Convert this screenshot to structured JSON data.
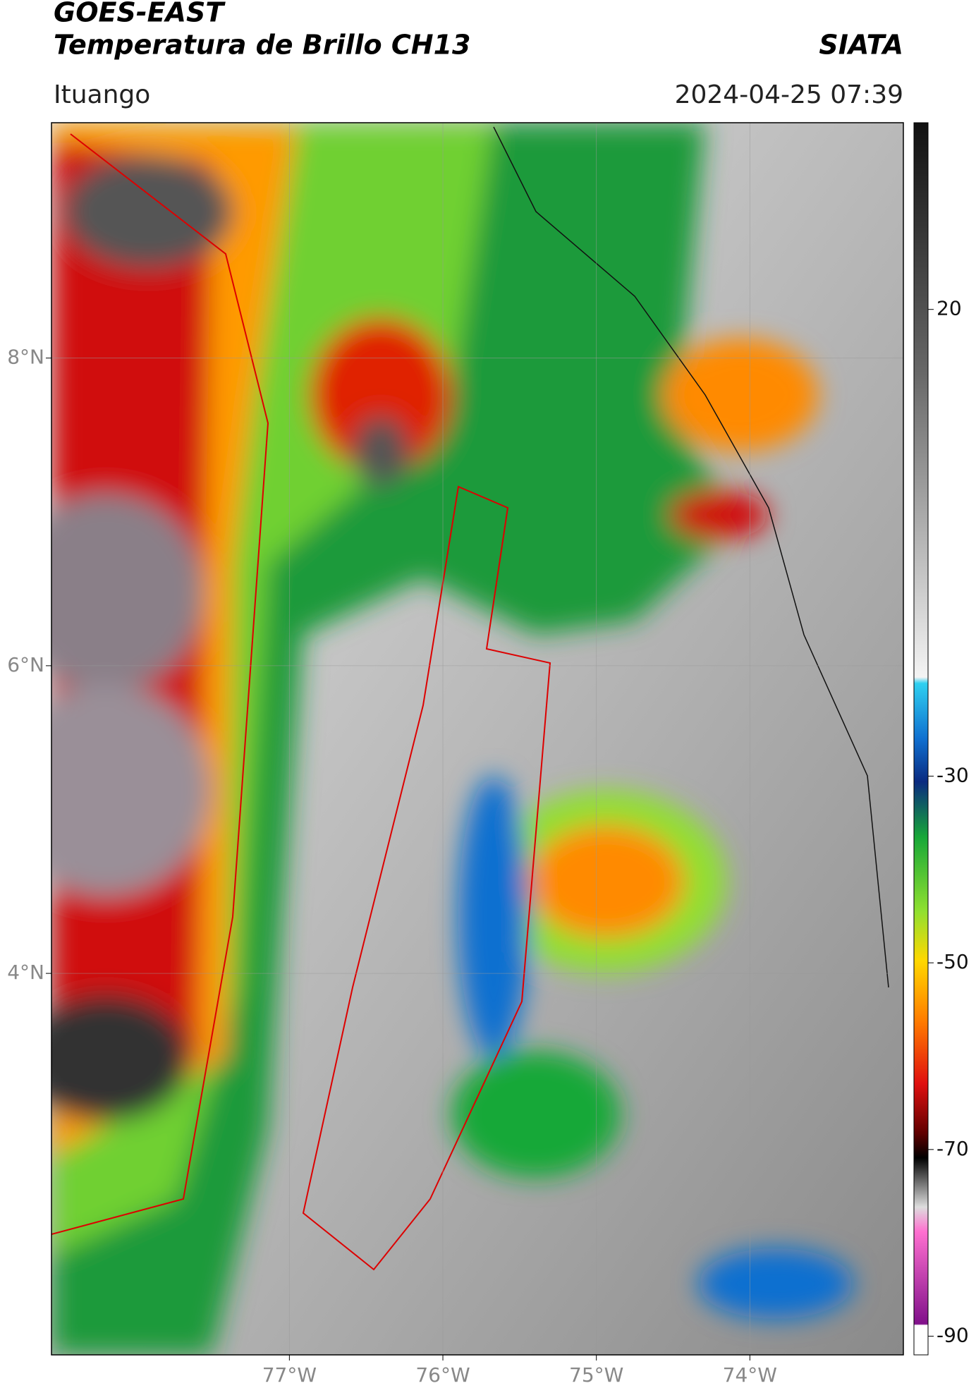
{
  "header": {
    "title_line1": "GOES-EAST",
    "title_line2": "Temperatura de Brillo CH13",
    "source": "SIATA",
    "location": "Ituango",
    "datetime": "2024-04-25 07:39"
  },
  "map": {
    "latlim": [
      1.52,
      9.53
    ],
    "lonlim": [
      -78.55,
      -73.0
    ],
    "lat_ticks": [
      {
        "value": 4,
        "label": "4°N"
      },
      {
        "value": 6,
        "label": "6°N"
      },
      {
        "value": 8,
        "label": "8°N"
      }
    ],
    "lon_ticks": [
      {
        "value": -77,
        "label": "77°W"
      },
      {
        "value": -76,
        "label": "76°W"
      },
      {
        "value": -75,
        "label": "75°W"
      },
      {
        "value": -74,
        "label": "74°W"
      }
    ]
  },
  "colorbar": {
    "lim": [
      -92,
      40
    ],
    "ticks": [
      20,
      -30,
      -50,
      -70,
      -90
    ]
  }
}
